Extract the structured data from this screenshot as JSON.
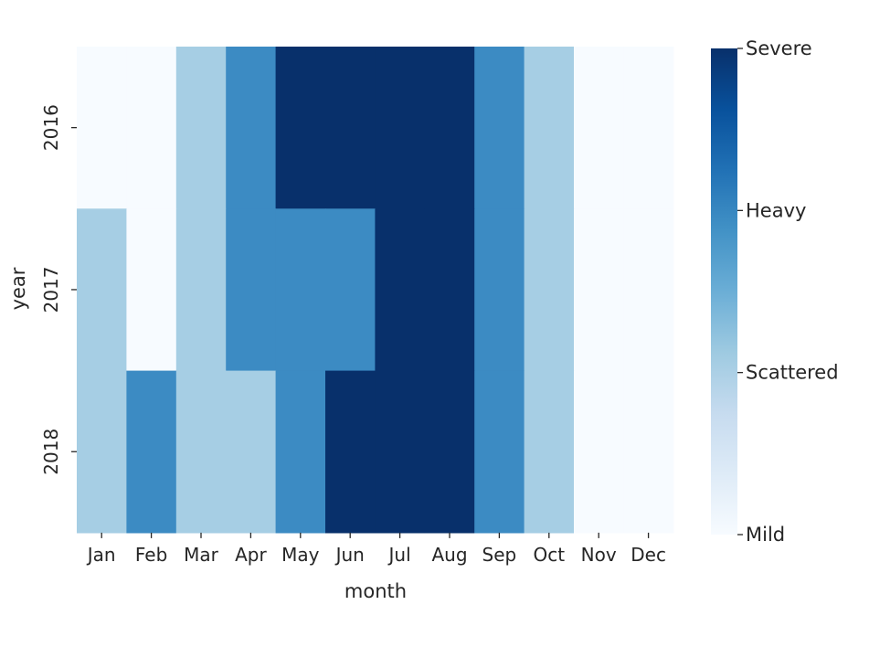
{
  "chart_data": {
    "type": "heatmap",
    "title": "",
    "xlabel": "month",
    "ylabel": "year",
    "x": [
      "Jan",
      "Feb",
      "Mar",
      "Apr",
      "May",
      "Jun",
      "Jul",
      "Aug",
      "Sep",
      "Oct",
      "Nov",
      "Dec"
    ],
    "y": [
      "2016",
      "2017",
      "2018"
    ],
    "values": [
      [
        0,
        0,
        1,
        2,
        3,
        3,
        3,
        3,
        2,
        1,
        0,
        0
      ],
      [
        1,
        0,
        1,
        2,
        2,
        2,
        3,
        3,
        2,
        1,
        0,
        0
      ],
      [
        1,
        2,
        1,
        1,
        2,
        3,
        3,
        3,
        2,
        1,
        0,
        0
      ]
    ],
    "colorbar": {
      "ticks": [
        0,
        1,
        2,
        3
      ],
      "tick_labels": [
        "Mild",
        "Scattered",
        "Heavy",
        "Severe"
      ],
      "range": [
        0,
        3
      ],
      "colormap": "Blues"
    },
    "colors": {
      "0": "#f7fbff",
      "1": "#a6cee4",
      "2": "#3c8bc3",
      "3": "#08306b"
    },
    "colormap_stops": [
      "#f7fbff",
      "#deebf7",
      "#c6dbef",
      "#9ecae1",
      "#6baed6",
      "#4292c6",
      "#2171b5",
      "#08519c",
      "#08306b"
    ],
    "grid": false
  }
}
